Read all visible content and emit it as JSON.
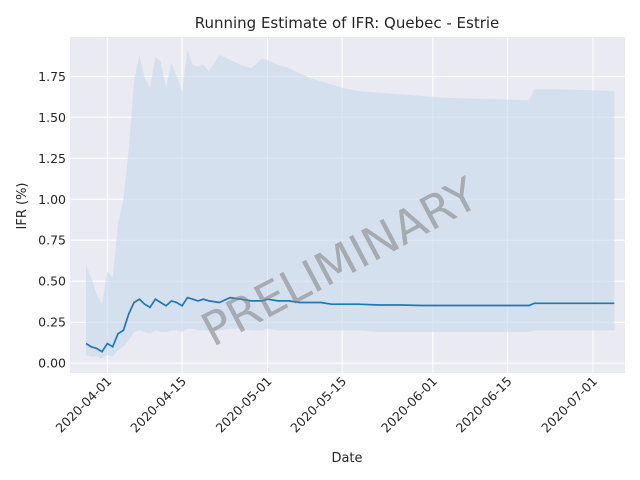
{
  "chart_data": {
    "type": "line",
    "title": "Running Estimate of IFR: Quebec - Estrie",
    "xlabel": "Date",
    "ylabel": "IFR (%)",
    "watermark": "PRELIMINARY",
    "grid": true,
    "x_ticks": [
      "2020-04-01",
      "2020-04-15",
      "2020-05-01",
      "2020-05-15",
      "2020-06-01",
      "2020-06-15",
      "2020-07-01"
    ],
    "y_ticks": [
      "0.00",
      "0.25",
      "0.50",
      "0.75",
      "1.00",
      "1.25",
      "1.50",
      "1.75"
    ],
    "xlim": [
      "2020-03-25",
      "2020-07-07"
    ],
    "ylim": [
      -0.06,
      1.99
    ],
    "colors": {
      "line": "#1f77b4",
      "band": "#c6d8ec",
      "plot_bg": "#eaeaf2",
      "grid": "#ffffff"
    },
    "series": [
      {
        "dates": [
          "2020-03-28",
          "2020-03-29",
          "2020-03-30",
          "2020-03-31",
          "2020-04-01",
          "2020-04-02",
          "2020-04-03",
          "2020-04-04",
          "2020-04-05",
          "2020-04-06",
          "2020-04-07",
          "2020-04-08",
          "2020-04-09",
          "2020-04-10",
          "2020-04-11",
          "2020-04-12",
          "2020-04-13",
          "2020-04-14",
          "2020-04-15",
          "2020-04-16",
          "2020-04-17",
          "2020-04-18",
          "2020-04-19",
          "2020-04-20",
          "2020-04-22",
          "2020-04-24",
          "2020-04-26",
          "2020-04-28",
          "2020-04-30",
          "2020-05-01",
          "2020-05-03",
          "2020-05-05",
          "2020-05-07",
          "2020-05-09",
          "2020-05-11",
          "2020-05-13",
          "2020-05-15",
          "2020-05-18",
          "2020-05-22",
          "2020-05-26",
          "2020-05-30",
          "2020-06-03",
          "2020-06-08",
          "2020-06-13",
          "2020-06-18",
          "2020-06-19",
          "2020-06-20",
          "2020-06-25",
          "2020-07-01",
          "2020-07-05"
        ],
        "values": [
          0.12,
          0.1,
          0.09,
          0.07,
          0.12,
          0.1,
          0.18,
          0.2,
          0.3,
          0.37,
          0.39,
          0.36,
          0.34,
          0.39,
          0.37,
          0.35,
          0.38,
          0.37,
          0.35,
          0.4,
          0.39,
          0.38,
          0.39,
          0.38,
          0.37,
          0.4,
          0.39,
          0.38,
          0.38,
          0.39,
          0.38,
          0.38,
          0.37,
          0.37,
          0.37,
          0.36,
          0.36,
          0.36,
          0.355,
          0.355,
          0.352,
          0.352,
          0.352,
          0.352,
          0.352,
          0.352,
          0.365,
          0.365,
          0.365,
          0.365
        ],
        "lower": [
          0.05,
          0.04,
          0.04,
          0.03,
          0.05,
          0.04,
          0.08,
          0.1,
          0.14,
          0.19,
          0.2,
          0.19,
          0.18,
          0.2,
          0.19,
          0.19,
          0.2,
          0.2,
          0.19,
          0.21,
          0.21,
          0.2,
          0.2,
          0.2,
          0.2,
          0.21,
          0.21,
          0.2,
          0.2,
          0.21,
          0.2,
          0.2,
          0.2,
          0.2,
          0.2,
          0.2,
          0.2,
          0.2,
          0.19,
          0.19,
          0.19,
          0.19,
          0.19,
          0.19,
          0.19,
          0.19,
          0.2,
          0.2,
          0.2,
          0.2
        ],
        "upper": [
          0.6,
          0.52,
          0.42,
          0.36,
          0.56,
          0.52,
          0.85,
          1.0,
          1.3,
          1.72,
          1.88,
          1.74,
          1.68,
          1.87,
          1.84,
          1.68,
          1.83,
          1.75,
          1.66,
          1.91,
          1.82,
          1.81,
          1.82,
          1.78,
          1.88,
          1.85,
          1.82,
          1.8,
          1.86,
          1.85,
          1.82,
          1.8,
          1.77,
          1.74,
          1.72,
          1.7,
          1.68,
          1.66,
          1.65,
          1.64,
          1.63,
          1.62,
          1.615,
          1.61,
          1.605,
          1.605,
          1.67,
          1.67,
          1.665,
          1.66
        ]
      }
    ]
  }
}
